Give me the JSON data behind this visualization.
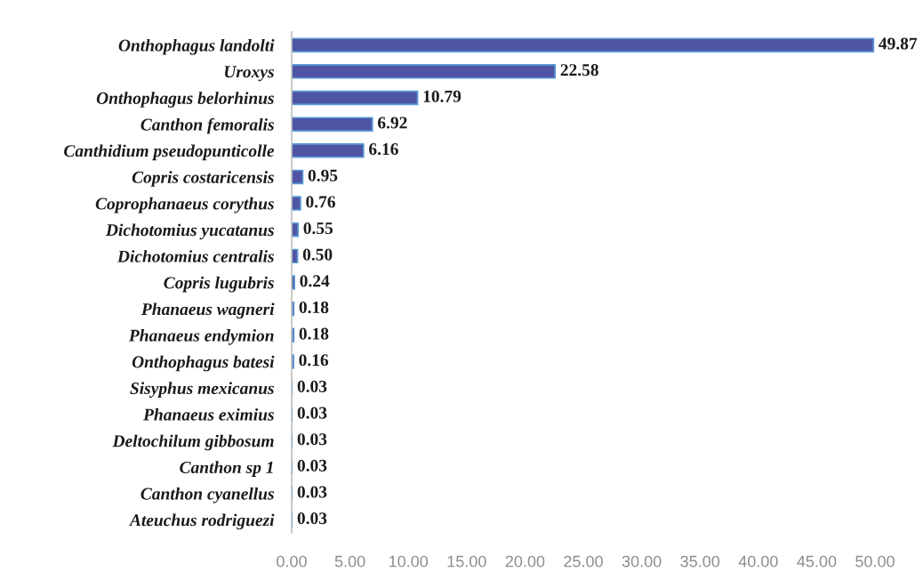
{
  "chart_data": {
    "type": "bar",
    "orientation": "horizontal",
    "categories": [
      "Onthophagus landolti",
      "Uroxys",
      "Onthophagus belorhinus",
      "Canthon femoralis",
      "Canthidium pseudopunticolle",
      "Copris costaricensis",
      "Coprophanaeus corythus",
      "Dichotomius yucatanus",
      "Dichotomius centralis",
      "Copris lugubris",
      "Phanaeus wagneri",
      "Phanaeus endymion",
      "Onthophagus batesi",
      "Sisyphus mexicanus",
      "Phanaeus eximius",
      "Deltochilum gibbosum",
      "Canthon sp 1",
      "Canthon cyanellus",
      "Ateuchus rodriguezi"
    ],
    "values": [
      49.87,
      22.58,
      10.79,
      6.92,
      6.16,
      0.95,
      0.76,
      0.55,
      0.5,
      0.24,
      0.18,
      0.18,
      0.16,
      0.03,
      0.03,
      0.03,
      0.03,
      0.03,
      0.03
    ],
    "value_labels": [
      "49.87",
      "22.58",
      "10.79",
      "6.92",
      "6.16",
      "0.95",
      "0.76",
      "0.55",
      "0.50",
      "0.24",
      "0.18",
      "0.18",
      "0.16",
      "0.03",
      "0.03",
      "0.03",
      "0.03",
      "0.03",
      "0.03"
    ],
    "color": "#4e55a4",
    "xlim": [
      0,
      50
    ],
    "xticks": [
      {
        "value": 0,
        "label": "0.00"
      },
      {
        "value": 5,
        "label": "5.00"
      },
      {
        "value": 10,
        "label": "10.00"
      },
      {
        "value": 15,
        "label": "15.00"
      },
      {
        "value": 20,
        "label": "20.00"
      },
      {
        "value": 25,
        "label": "25.00"
      },
      {
        "value": 30,
        "label": "30.00"
      },
      {
        "value": 35,
        "label": "35.00"
      },
      {
        "value": 40,
        "label": "40.00"
      },
      {
        "value": 45,
        "label": "45.00"
      },
      {
        "value": 50,
        "label": "50.00"
      }
    ]
  }
}
